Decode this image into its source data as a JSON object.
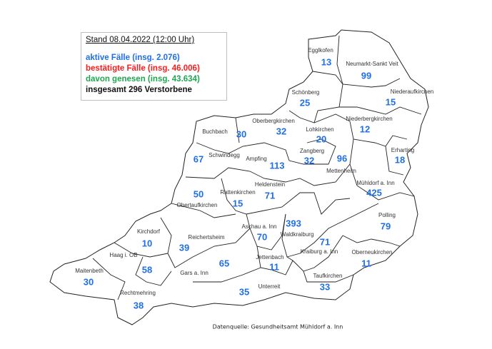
{
  "legend": {
    "title": "Stand 08.04.2022 (12:00 Uhr)",
    "active": "aktive Fälle (insg. 2.076)",
    "confirmed": "bestätigte Fälle (insg. 46.006)",
    "recovered": "davon genesen (insg. 43.634)",
    "deaths": "insgesamt 296 Verstorbene",
    "colors": {
      "active": "#1f6fe8",
      "confirmed": "#ff1a1a",
      "recovered": "#1fa650",
      "deaths": "#111111"
    }
  },
  "municipalities": [
    {
      "name": "Egglkofen",
      "active": "13"
    },
    {
      "name": "Neumarkt-Sankt Veit",
      "active": "99"
    },
    {
      "name": "Niederaufkirchen",
      "active": "15"
    },
    {
      "name": "Schönberg",
      "active": "25"
    },
    {
      "name": "Niederbergkirchen",
      "active": "12"
    },
    {
      "name": "Lohkirchen",
      "active": "20"
    },
    {
      "name": "Oberbergkirchen",
      "active": "32"
    },
    {
      "name": "Buchbach",
      "active": "30"
    },
    {
      "name": "Erharting",
      "active": "18"
    },
    {
      "name": "Schwindegg",
      "active": "67"
    },
    {
      "name": "Ampfing",
      "active": "113"
    },
    {
      "name": "Zangberg",
      "active": "32"
    },
    {
      "name": "Mettenheim",
      "active": "96"
    },
    {
      "name": "Mühldorf a. Inn",
      "active": "425"
    },
    {
      "name": "Heldenstein",
      "active": "71"
    },
    {
      "name": "Rattenkirchen",
      "active": "15"
    },
    {
      "name": "Obertaufkirchen",
      "active": "50"
    },
    {
      "name": "Polling",
      "active": "79"
    },
    {
      "name": "Aschau a. Inn",
      "active": "70"
    },
    {
      "name": "Waldkraiburg",
      "active": "393"
    },
    {
      "name": "Kirchdorf",
      "active": "10"
    },
    {
      "name": "Reichertsheim",
      "active": "39"
    },
    {
      "name": "Kraiburg a. Inn",
      "active": "71"
    },
    {
      "name": "Oberneukirchen",
      "active": "11"
    },
    {
      "name": "Haag i. OB",
      "active": "58"
    },
    {
      "name": "Jettenbach",
      "active": "11"
    },
    {
      "name": "Gars a. Inn",
      "active": "65"
    },
    {
      "name": "Maitenbeth",
      "active": "30"
    },
    {
      "name": "Taufkirchen",
      "active": "33"
    },
    {
      "name": "Unterreit",
      "active": "35"
    },
    {
      "name": "Rechtmehring",
      "active": "38"
    }
  ],
  "source": "Datenquelle: Gesundheitsamt Mühldorf a. Inn"
}
